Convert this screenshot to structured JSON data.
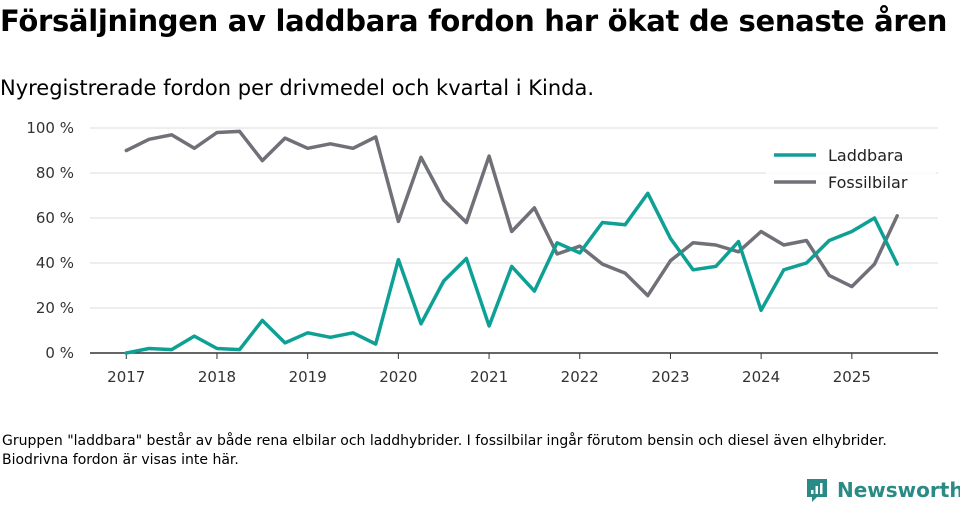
{
  "header": {
    "title": "Försäljningen av laddbara fordon har ökat de senaste åren",
    "subtitle": "Nyregistrerade fordon per drivmedel och kvartal i Kinda."
  },
  "footer": {
    "note": "Gruppen \"laddbara\" består av både rena elbilar och laddhybrider. I fossilbilar ingår förutom bensin och diesel även elhybrider. Biodrivna fordon är visas inte här.",
    "brand": "Newsworthy"
  },
  "colors": {
    "laddbara": "#0fa095",
    "fossilbilar": "#707079",
    "brand": "#2a8a86"
  },
  "chart_data": {
    "type": "line",
    "title": "Försäljningen av laddbara fordon har ökat de senaste åren",
    "subtitle": "Nyregistrerade fordon per drivmedel och kvartal i Kinda.",
    "xlabel": "",
    "ylabel": "",
    "ylim": [
      0,
      100
    ],
    "yticks": [
      0,
      20,
      40,
      60,
      80,
      100
    ],
    "ytick_labels": [
      "0 %",
      "20 %",
      "40 %",
      "60 %",
      "80 %",
      "100 %"
    ],
    "xticks": [
      2017,
      2018,
      2019,
      2020,
      2021,
      2022,
      2023,
      2024,
      2025
    ],
    "xtick_labels": [
      "2017",
      "2018",
      "2019",
      "2020",
      "2021",
      "2022",
      "2023",
      "2024",
      "2025"
    ],
    "grid": true,
    "legend_position": "top-right",
    "x": [
      2017.0,
      2017.25,
      2017.5,
      2017.75,
      2018.0,
      2018.25,
      2018.5,
      2018.75,
      2019.0,
      2019.25,
      2019.5,
      2019.75,
      2020.0,
      2020.25,
      2020.5,
      2020.75,
      2021.0,
      2021.25,
      2021.5,
      2021.75,
      2022.0,
      2022.25,
      2022.5,
      2022.75,
      2023.0,
      2023.25,
      2023.5,
      2023.75,
      2024.0,
      2024.25,
      2024.5,
      2024.75,
      2025.0,
      2025.25,
      2025.5
    ],
    "series": [
      {
        "name": "Laddbara",
        "values": [
          0,
          2,
          1.5,
          7.5,
          2,
          1.5,
          14.5,
          4.5,
          9,
          7,
          9,
          4,
          41.5,
          13,
          32,
          42,
          12,
          38.5,
          27.5,
          49,
          44.5,
          58,
          57,
          71,
          51,
          37,
          38.5,
          49.5,
          19,
          37,
          40,
          50,
          54,
          60,
          39.5
        ]
      },
      {
        "name": "Fossilbilar",
        "values": [
          90,
          95,
          97,
          91,
          98,
          98.5,
          85.5,
          95.5,
          91,
          93,
          91,
          96,
          58.5,
          87,
          68,
          58,
          87.5,
          54,
          64.5,
          44,
          47.5,
          39.5,
          35.5,
          25.5,
          41,
          49,
          48,
          45,
          54,
          48,
          50,
          34.5,
          29.5,
          39.5,
          61
        ]
      }
    ]
  }
}
